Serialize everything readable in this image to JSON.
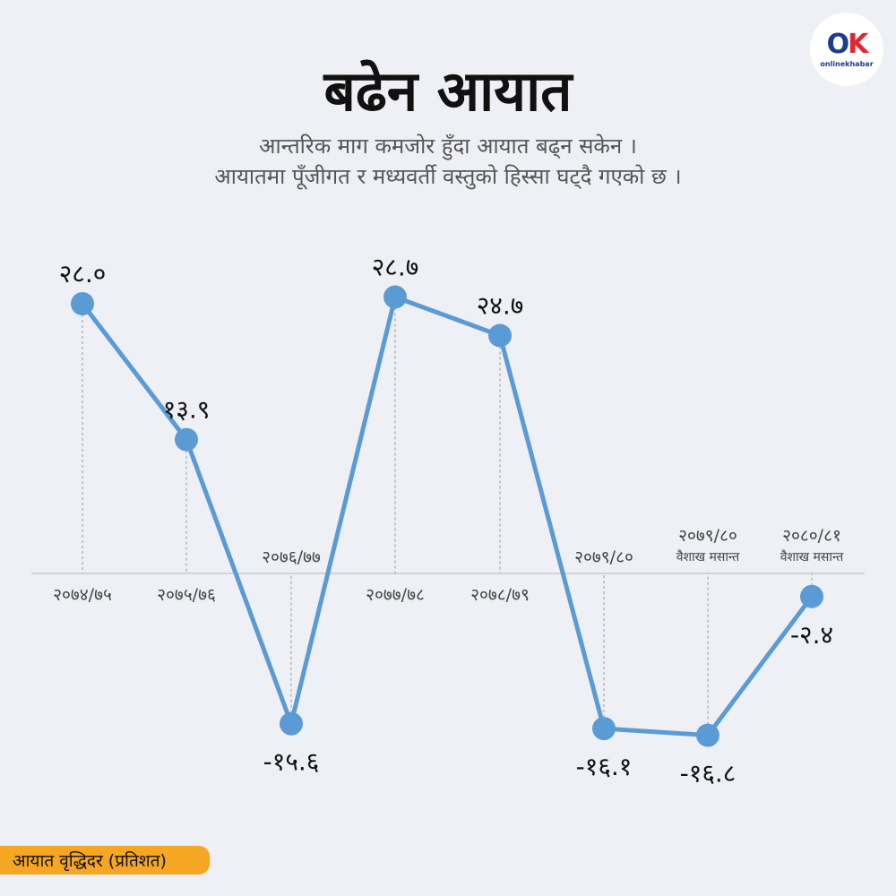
{
  "header": {
    "title": "बढेन आयात",
    "subtitle_line1": "आन्तरिक माग कमजोर हुँदा आयात बढ्न सकेन ।",
    "subtitle_line2": "आयातमा पूँजीगत र मध्यवर्ती वस्तुको हिस्सा घट्दै गएको छ ।"
  },
  "logo": {
    "text": "onlinekhabar"
  },
  "footer": {
    "series_label": "आयात वृद्धिदर (प्रतिशत)"
  },
  "colors": {
    "line": "#5b9bd5",
    "point": "#5b9bd5",
    "badge": "#f5a623",
    "background": "#eef0f5"
  },
  "chart_data": {
    "type": "line",
    "categories": [
      "२०७४/७५",
      "२०७५/७६",
      "२०७६/७७",
      "२०७७/७८",
      "२०७८/७९",
      "२०७९/८०",
      "२०७९/८० वैशाख मसान्त",
      "२०८०/८१ वैशाख मसान्त"
    ],
    "category_lines": [
      [
        "२०७४/७५"
      ],
      [
        "२०७५/७६"
      ],
      [
        "२०७६/७७"
      ],
      [
        "२०७७/७८"
      ],
      [
        "२०७८/७९"
      ],
      [
        "२०७९/८०"
      ],
      [
        "२०७९/८०",
        "वैशाख मसान्त"
      ],
      [
        "२०८०/८१",
        "वैशाख मसान्त"
      ]
    ],
    "values": [
      28.0,
      13.9,
      -15.6,
      28.7,
      24.7,
      -16.1,
      -16.8,
      -2.4
    ],
    "value_labels": [
      "२८.०",
      "१३.९",
      "-१५.६",
      "२८.७",
      "२४.७",
      "-१६.१",
      "-१६.८",
      "-२.४"
    ],
    "ylim": [
      -20,
      35
    ],
    "grid": false,
    "legend": "none"
  }
}
